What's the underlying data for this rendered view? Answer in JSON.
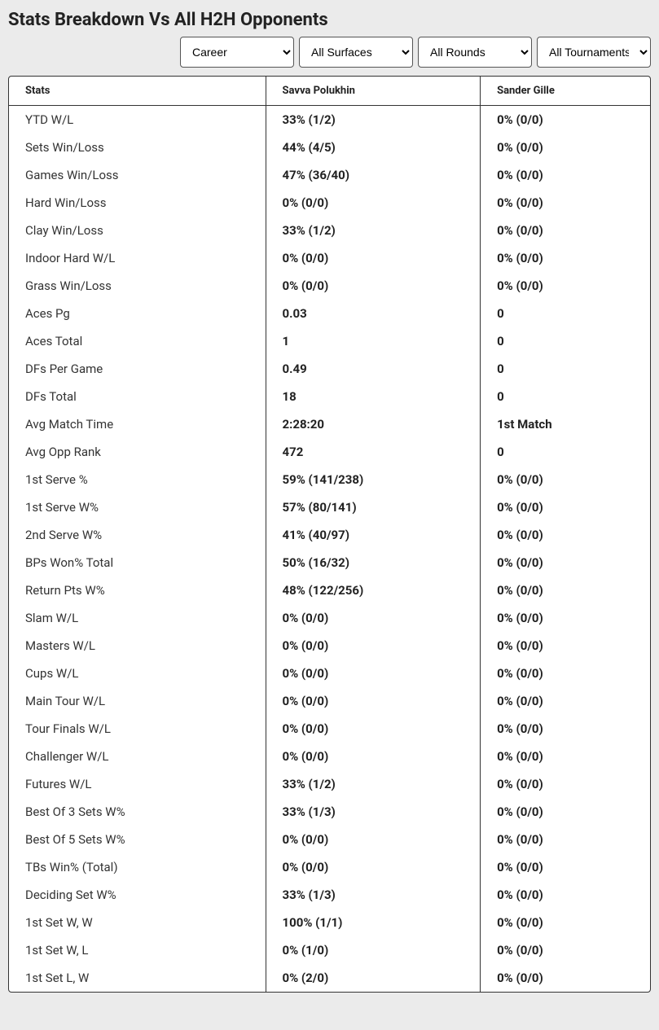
{
  "title": "Stats Breakdown Vs All H2H Opponents",
  "filters": {
    "period": "Career",
    "surface": "All Surfaces",
    "rounds": "All Rounds",
    "tournaments": "All Tournaments"
  },
  "table": {
    "columns": [
      "Stats",
      "Savva Polukhin",
      "Sander Gille"
    ],
    "rows": [
      [
        "YTD W/L",
        "33% (1/2)",
        "0% (0/0)"
      ],
      [
        "Sets Win/Loss",
        "44% (4/5)",
        "0% (0/0)"
      ],
      [
        "Games Win/Loss",
        "47% (36/40)",
        "0% (0/0)"
      ],
      [
        "Hard Win/Loss",
        "0% (0/0)",
        "0% (0/0)"
      ],
      [
        "Clay Win/Loss",
        "33% (1/2)",
        "0% (0/0)"
      ],
      [
        "Indoor Hard W/L",
        "0% (0/0)",
        "0% (0/0)"
      ],
      [
        "Grass Win/Loss",
        "0% (0/0)",
        "0% (0/0)"
      ],
      [
        "Aces Pg",
        "0.03",
        "0"
      ],
      [
        "Aces Total",
        "1",
        "0"
      ],
      [
        "DFs Per Game",
        "0.49",
        "0"
      ],
      [
        "DFs Total",
        "18",
        "0"
      ],
      [
        "Avg Match Time",
        "2:28:20",
        "1st Match"
      ],
      [
        "Avg Opp Rank",
        "472",
        "0"
      ],
      [
        "1st Serve %",
        "59% (141/238)",
        "0% (0/0)"
      ],
      [
        "1st Serve W%",
        "57% (80/141)",
        "0% (0/0)"
      ],
      [
        "2nd Serve W%",
        "41% (40/97)",
        "0% (0/0)"
      ],
      [
        "BPs Won% Total",
        "50% (16/32)",
        "0% (0/0)"
      ],
      [
        "Return Pts W%",
        "48% (122/256)",
        "0% (0/0)"
      ],
      [
        "Slam W/L",
        "0% (0/0)",
        "0% (0/0)"
      ],
      [
        "Masters W/L",
        "0% (0/0)",
        "0% (0/0)"
      ],
      [
        "Cups W/L",
        "0% (0/0)",
        "0% (0/0)"
      ],
      [
        "Main Tour W/L",
        "0% (0/0)",
        "0% (0/0)"
      ],
      [
        "Tour Finals W/L",
        "0% (0/0)",
        "0% (0/0)"
      ],
      [
        "Challenger W/L",
        "0% (0/0)",
        "0% (0/0)"
      ],
      [
        "Futures W/L",
        "33% (1/2)",
        "0% (0/0)"
      ],
      [
        "Best Of 3 Sets W%",
        "33% (1/3)",
        "0% (0/0)"
      ],
      [
        "Best Of 5 Sets W%",
        "0% (0/0)",
        "0% (0/0)"
      ],
      [
        "TBs Win% (Total)",
        "0% (0/0)",
        "0% (0/0)"
      ],
      [
        "Deciding Set W%",
        "33% (1/3)",
        "0% (0/0)"
      ],
      [
        "1st Set W, W",
        "100% (1/1)",
        "0% (0/0)"
      ],
      [
        "1st Set W, L",
        "0% (1/0)",
        "0% (0/0)"
      ],
      [
        "1st Set L, W",
        "0% (2/0)",
        "0% (0/0)"
      ]
    ]
  },
  "colors": {
    "page_bg": "#ebebeb",
    "panel_bg": "#ffffff",
    "border": "#333333",
    "text": "#222222"
  }
}
